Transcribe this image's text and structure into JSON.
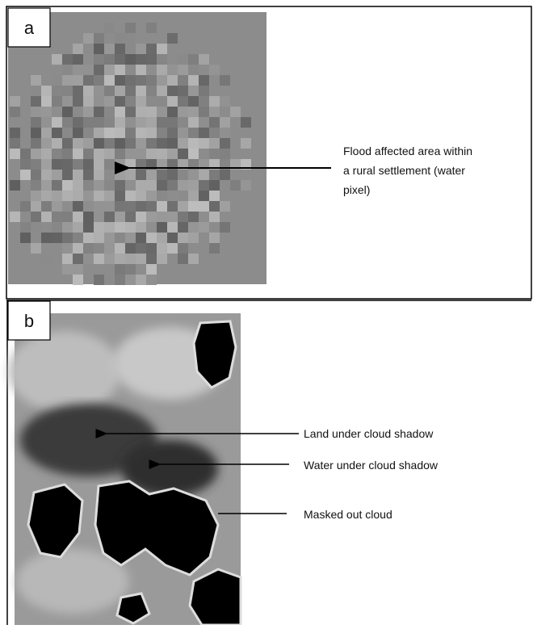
{
  "panel_a": {
    "label": "a",
    "annotation": [
      "Flood affected area within",
      "a rural settlement (water",
      "pixel)"
    ]
  },
  "panel_b": {
    "label": "b",
    "annotations": [
      "Land under cloud shadow",
      "Water under cloud shadow",
      "Masked out cloud"
    ]
  }
}
